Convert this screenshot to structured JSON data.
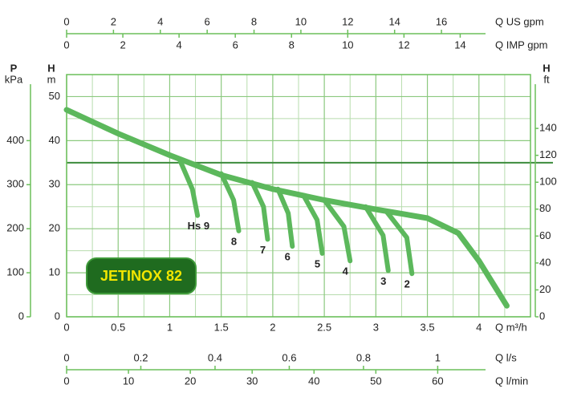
{
  "chart_data": {
    "type": "line",
    "x_label": "Q m³/h",
    "y_label": "H",
    "y_unit": "m",
    "xlim": [
      0,
      4.5
    ],
    "ylim": [
      0,
      55
    ],
    "xticks": [
      0,
      0.5,
      1,
      1.5,
      2,
      2.5,
      3,
      3.5,
      4
    ],
    "yticks": [
      0,
      10,
      20,
      30,
      40,
      50
    ],
    "xminor": [
      0.25,
      0.75,
      1.25,
      1.75,
      2.25,
      2.75,
      3.25,
      3.75,
      4.25
    ],
    "yminor": [
      5,
      15,
      25,
      45
    ],
    "reference_line": 35,
    "grid": true,
    "color": "#5cb85c",
    "badge": "JETINOX 82",
    "curve": {
      "x": [
        0,
        0.5,
        1,
        1.5,
        2,
        2.5,
        3,
        3.5,
        3.8,
        4,
        4.27
      ],
      "values": [
        47,
        41.6,
        36.7,
        32.2,
        29,
        26.5,
        24.4,
        22.4,
        19,
        12.7,
        2.5
      ]
    },
    "series": [
      {
        "name": "Hs 9",
        "x": [
          1.1,
          1.22,
          1.27
        ],
        "values": [
          35.5,
          29,
          23
        ]
      },
      {
        "name": "8",
        "x": [
          1.5,
          1.62,
          1.67
        ],
        "values": [
          32.5,
          26.5,
          19.5
        ]
      },
      {
        "name": "7",
        "x": [
          1.8,
          1.91,
          1.95
        ],
        "values": [
          30.5,
          25,
          17.6
        ]
      },
      {
        "name": "6",
        "x": [
          2.05,
          2.15,
          2.19
        ],
        "values": [
          29,
          23.5,
          16
        ]
      },
      {
        "name": "5",
        "x": [
          2.3,
          2.43,
          2.48
        ],
        "values": [
          27.5,
          22,
          14.4
        ]
      },
      {
        "name": "4",
        "x": [
          2.5,
          2.69,
          2.75
        ],
        "values": [
          26.5,
          20.5,
          12.7
        ]
      },
      {
        "name": "3",
        "x": [
          2.9,
          3.07,
          3.12
        ],
        "values": [
          25,
          18.5,
          10.5
        ]
      },
      {
        "name": "2",
        "x": [
          3.1,
          3.3,
          3.35
        ],
        "values": [
          24,
          18,
          9.8
        ]
      }
    ],
    "top_axes": [
      {
        "label": "Q US gpm",
        "xlim": [
          0,
          19.8
        ],
        "xticks": [
          0,
          2,
          4,
          6,
          8,
          10,
          12,
          14,
          16
        ]
      },
      {
        "label": "Q IMP gpm",
        "xlim": [
          0,
          16.5
        ],
        "xticks": [
          0,
          2,
          4,
          6,
          8,
          10,
          12,
          14
        ]
      }
    ],
    "bottom_axes": [
      {
        "label": "Q l/s",
        "xlim": [
          0,
          1.25
        ],
        "xticks": [
          0,
          0.2,
          0.4,
          0.6,
          0.8,
          1
        ]
      },
      {
        "label": "Q l/min",
        "xlim": [
          0,
          75
        ],
        "xticks": [
          0,
          10,
          20,
          30,
          40,
          50,
          60
        ]
      }
    ],
    "left_axis": {
      "label": "P",
      "unit": "kPa",
      "ylim": [
        0,
        550
      ],
      "yticks": [
        0,
        100,
        200,
        300,
        400
      ]
    },
    "right_axis": {
      "label": "H",
      "unit": "ft",
      "ylim": [
        0,
        180
      ],
      "yticks": [
        0,
        20,
        40,
        60,
        80,
        100,
        120,
        140
      ]
    }
  }
}
